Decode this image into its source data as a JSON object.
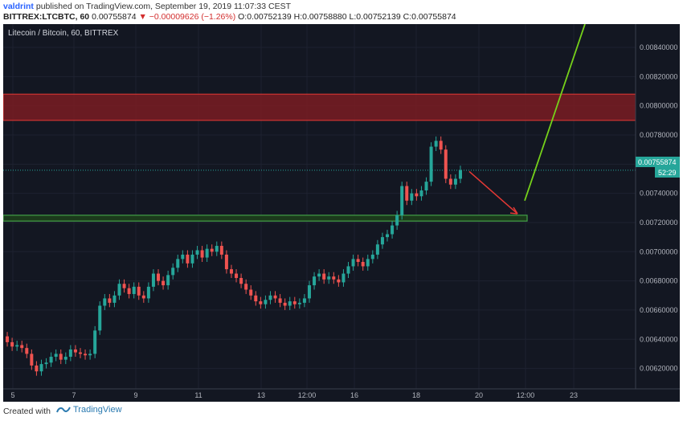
{
  "header": {
    "author": "valdrint",
    "published_text": "published on TradingView.com, September 19, 2019 11:07:33 CEST",
    "symbol": "BITTREX:LTCBTC, 60",
    "last_price": "0.00755874",
    "change": "−0.00009626 (−1.26%)",
    "ohlc": "O:0.00752139 H:0.00758880 L:0.00752139 C:0.00755874"
  },
  "chart_data": {
    "type": "candlestick",
    "title": "Litecoin / Bitcoin, 60, BITTREX",
    "price_axis": {
      "ticks": [
        "0.00840000",
        "0.00820000",
        "0.00800000",
        "0.00780000",
        "0.00760000",
        "0.00740000",
        "0.00720000",
        "0.00700000",
        "0.00680000",
        "0.00660000",
        "0.00640000",
        "0.00620000"
      ],
      "range": [
        0.00606,
        0.00856
      ]
    },
    "time_axis": {
      "ticks": [
        "5",
        "7",
        "9",
        "11",
        "13",
        "12:00",
        "16",
        "18",
        "20",
        "12:00",
        "23"
      ]
    },
    "current_price_label": "0.00755874",
    "countdown_label": "52:29",
    "colors": {
      "up": "#26a69a",
      "down": "#ef5350",
      "background": "#131722",
      "grid": "#1e2230"
    },
    "price_path": [
      [
        0,
        0.00642
      ],
      [
        1,
        0.00638
      ],
      [
        2,
        0.00635
      ],
      [
        3,
        0.00636
      ],
      [
        4,
        0.00634
      ],
      [
        5,
        0.0063
      ],
      [
        6,
        0.00622
      ],
      [
        7,
        0.00618
      ],
      [
        8,
        0.00623
      ],
      [
        9,
        0.00624
      ],
      [
        10,
        0.00628
      ],
      [
        11,
        0.0063
      ],
      [
        12,
        0.00626
      ],
      [
        13,
        0.00628
      ],
      [
        14,
        0.00633
      ],
      [
        15,
        0.00631
      ],
      [
        16,
        0.0063
      ],
      [
        17,
        0.00629
      ],
      [
        18,
        0.0063
      ],
      [
        19,
        0.00646
      ],
      [
        20,
        0.00663
      ],
      [
        21,
        0.00668
      ],
      [
        22,
        0.00665
      ],
      [
        23,
        0.0067
      ],
      [
        24,
        0.00678
      ],
      [
        25,
        0.00675
      ],
      [
        26,
        0.00671
      ],
      [
        27,
        0.00676
      ],
      [
        28,
        0.0067
      ],
      [
        29,
        0.00668
      ],
      [
        30,
        0.00676
      ],
      [
        31,
        0.00685
      ],
      [
        32,
        0.0068
      ],
      [
        33,
        0.00677
      ],
      [
        34,
        0.00684
      ],
      [
        35,
        0.00689
      ],
      [
        36,
        0.00695
      ],
      [
        37,
        0.00698
      ],
      [
        38,
        0.00692
      ],
      [
        39,
        0.00698
      ],
      [
        40,
        0.00701
      ],
      [
        41,
        0.00696
      ],
      [
        42,
        0.00702
      ],
      [
        43,
        0.007
      ],
      [
        44,
        0.00704
      ],
      [
        45,
        0.00698
      ],
      [
        46,
        0.00688
      ],
      [
        47,
        0.00685
      ],
      [
        48,
        0.00682
      ],
      [
        49,
        0.00678
      ],
      [
        50,
        0.00674
      ],
      [
        51,
        0.0067
      ],
      [
        52,
        0.00666
      ],
      [
        53,
        0.00664
      ],
      [
        54,
        0.00667
      ],
      [
        55,
        0.0067
      ],
      [
        56,
        0.00668
      ],
      [
        57,
        0.00665
      ],
      [
        58,
        0.00663
      ],
      [
        59,
        0.00666
      ],
      [
        60,
        0.00664
      ],
      [
        61,
        0.00665
      ],
      [
        62,
        0.00668
      ],
      [
        63,
        0.00677
      ],
      [
        64,
        0.00683
      ],
      [
        65,
        0.00685
      ],
      [
        66,
        0.00681
      ],
      [
        67,
        0.00683
      ],
      [
        68,
        0.00681
      ],
      [
        69,
        0.00679
      ],
      [
        70,
        0.00685
      ],
      [
        71,
        0.0069
      ],
      [
        72,
        0.00695
      ],
      [
        73,
        0.00693
      ],
      [
        74,
        0.0069
      ],
      [
        75,
        0.00695
      ],
      [
        76,
        0.00698
      ],
      [
        77,
        0.00705
      ],
      [
        78,
        0.0071
      ],
      [
        79,
        0.00712
      ],
      [
        80,
        0.00718
      ],
      [
        81,
        0.00725
      ],
      [
        82,
        0.00745
      ],
      [
        83,
        0.00735
      ],
      [
        84,
        0.0074
      ],
      [
        85,
        0.00738
      ],
      [
        86,
        0.00742
      ],
      [
        87,
        0.00748
      ],
      [
        88,
        0.00772
      ],
      [
        89,
        0.00776
      ],
      [
        90,
        0.0077
      ],
      [
        91,
        0.0075
      ],
      [
        92,
        0.00746
      ],
      [
        93,
        0.0075
      ],
      [
        94,
        0.00756
      ]
    ],
    "annotations": {
      "resistance_zone": [
        0.0079,
        0.00808
      ],
      "support_zone": [
        0.00721,
        0.00725
      ],
      "red_arrow": {
        "from": [
          1.03,
          0.00755
        ],
        "to": [
          1.085,
          0.00726
        ]
      },
      "green_line": {
        "from": [
          1.09,
          0.00735
        ],
        "to": [
          1.22,
          0.00862
        ]
      }
    }
  },
  "footer": {
    "created_with": "Created with",
    "brand": "TradingView"
  }
}
